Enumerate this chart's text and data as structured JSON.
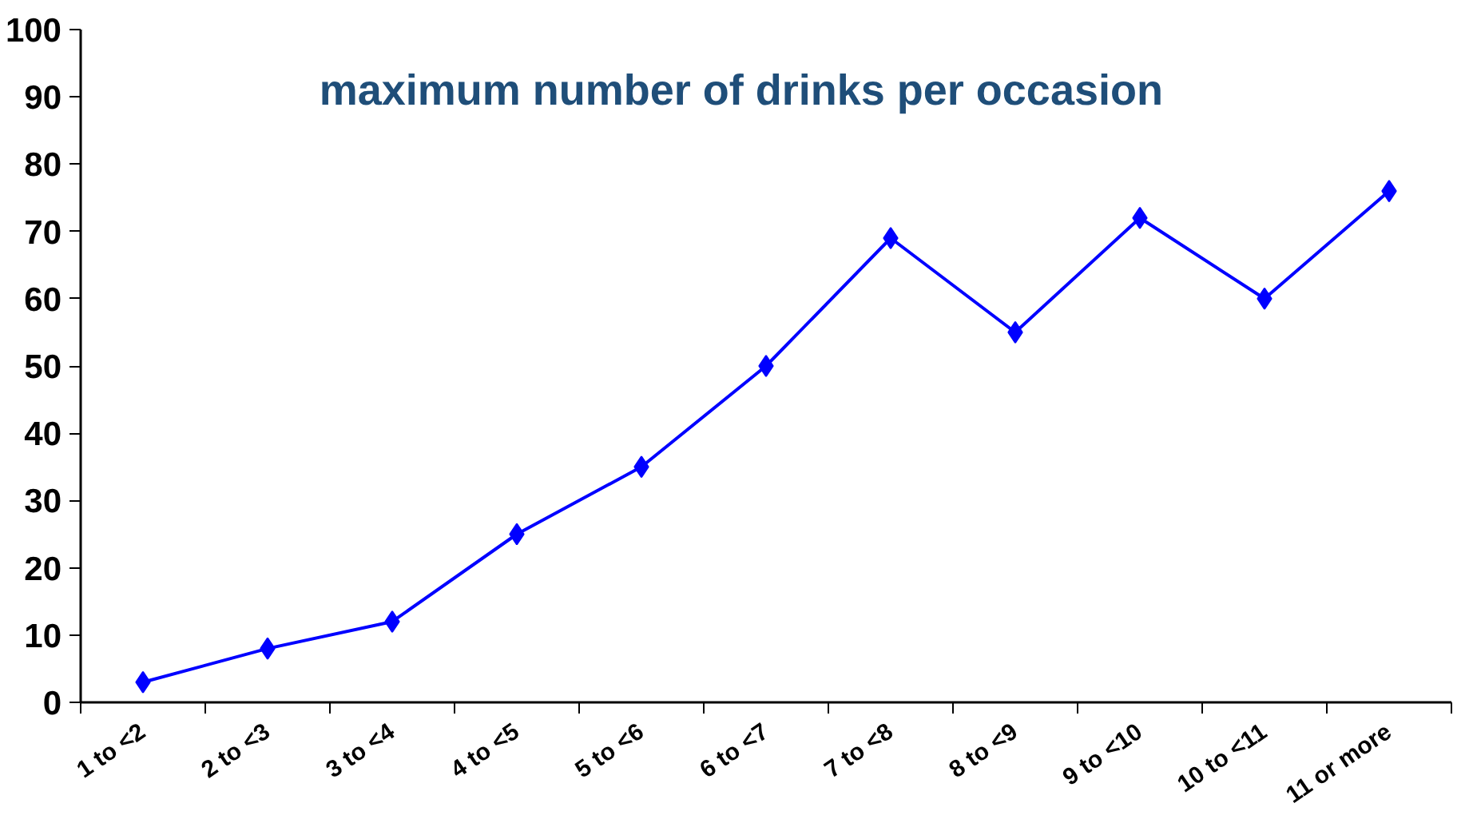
{
  "chart_data": {
    "type": "line",
    "title": "maximum number of drinks per occasion",
    "categories": [
      "1 to <2",
      "2 to <3",
      "3 to <4",
      "4 to <5",
      "5 to <6",
      "6 to <7",
      "7 to <8",
      "8 to <9",
      "9 to <10",
      "10 to <11",
      "11 or more"
    ],
    "series": [
      {
        "color": "#0000ff",
        "values": [
          3,
          8,
          12,
          25,
          35,
          50,
          69,
          55,
          72,
          60,
          76
        ]
      }
    ],
    "ylim": [
      0,
      100
    ],
    "yticks": [
      0,
      10,
      20,
      30,
      40,
      50,
      60,
      70,
      80,
      90,
      100
    ],
    "marker": "diamond",
    "line_style": "solid",
    "grid": false
  }
}
